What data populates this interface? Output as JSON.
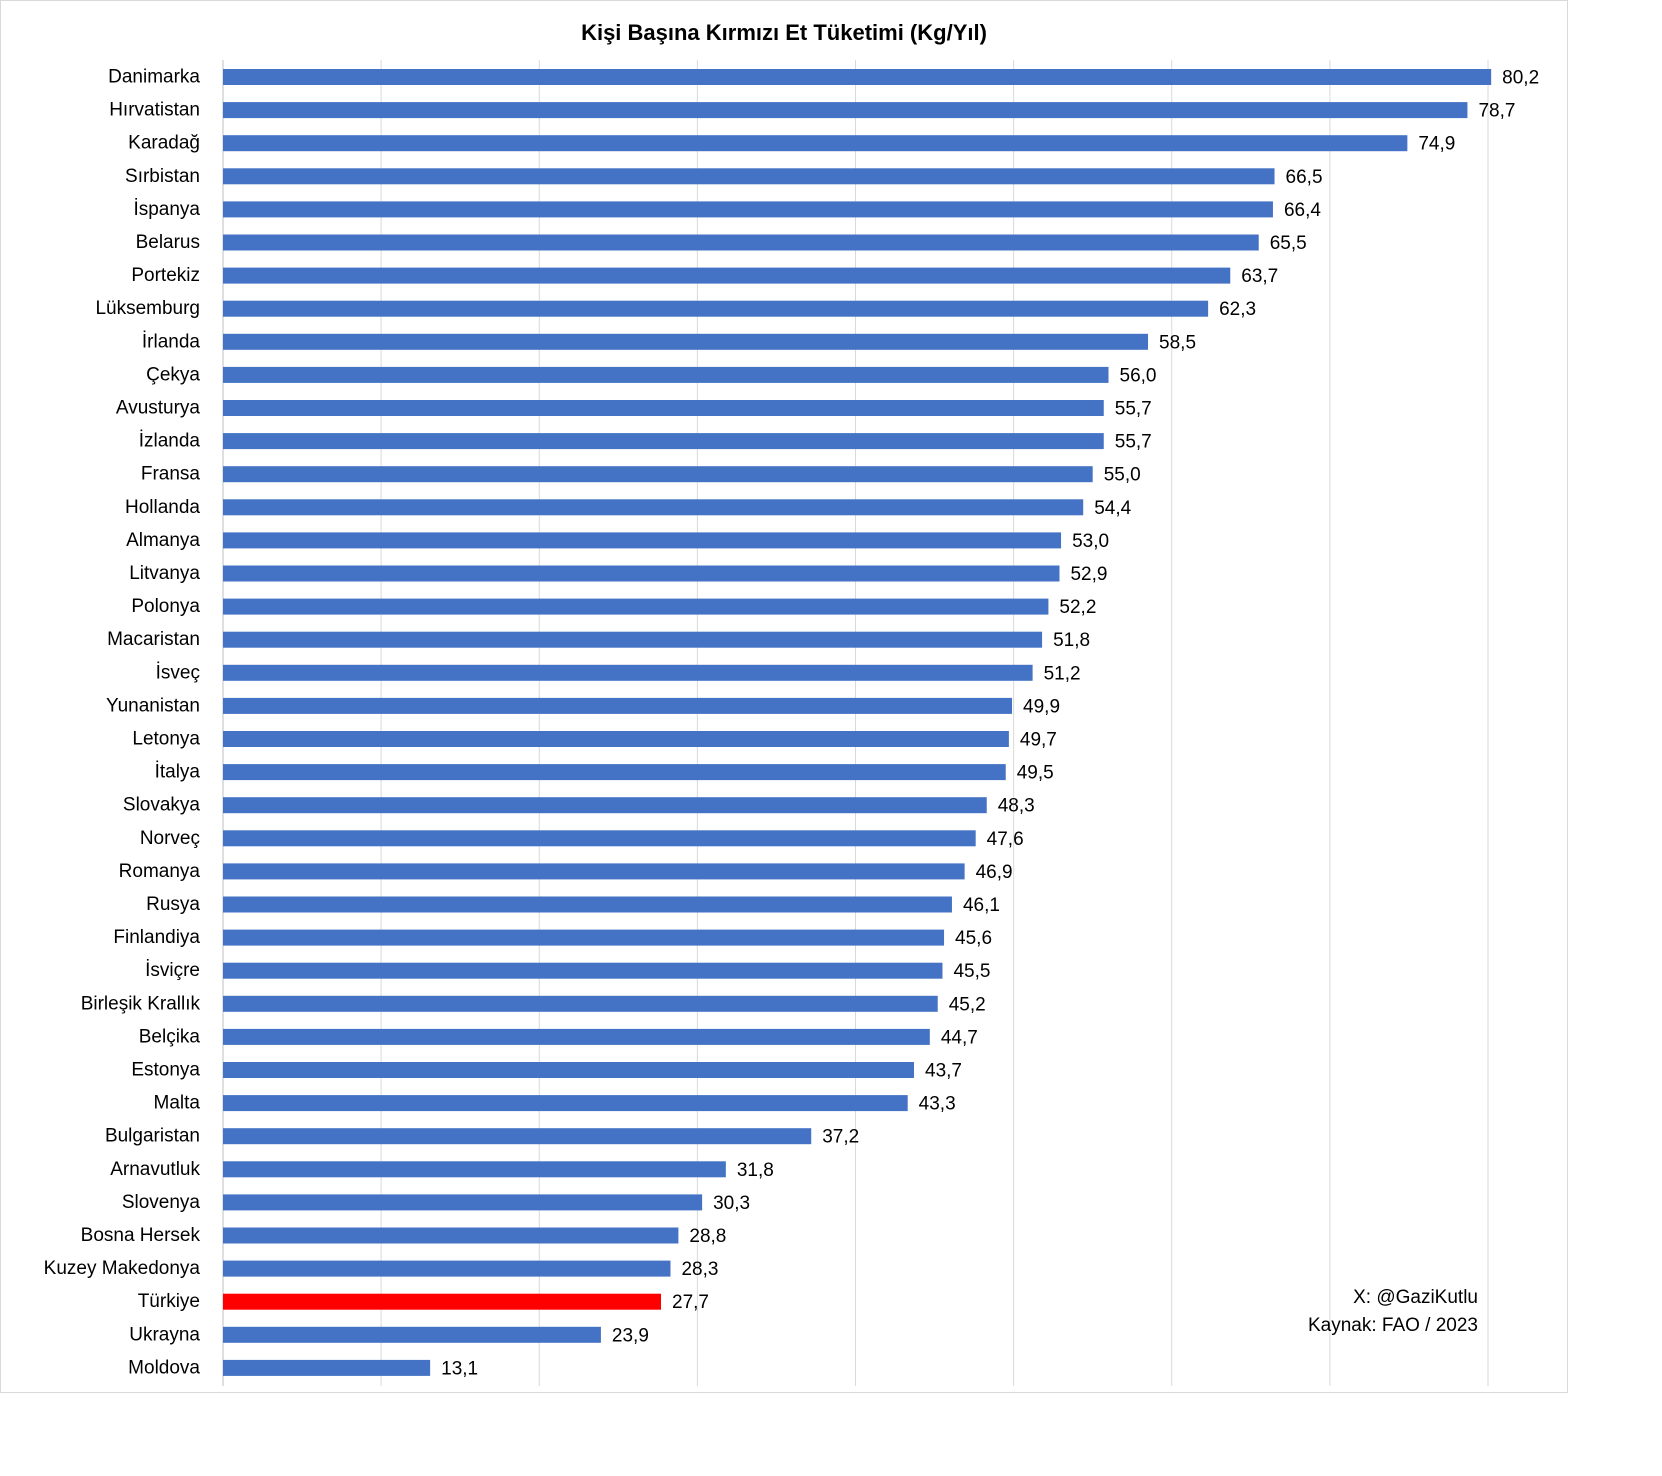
{
  "chart_data": {
    "type": "bar",
    "orientation": "horizontal",
    "title": "Kişi Başına Kırmızı Et Tüketimi (Kg/Yıl)",
    "categories": [
      "Danimarka",
      "Hırvatistan",
      "Karadağ",
      "Sırbistan",
      "İspanya",
      "Belarus",
      "Portekiz",
      "Lüksemburg",
      "İrlanda",
      "Çekya",
      "Avusturya",
      "İzlanda",
      "Fransa",
      "Hollanda",
      "Almanya",
      "Litvanya",
      "Polonya",
      "Macaristan",
      "İsveç",
      "Yunanistan",
      "Letonya",
      "İtalya",
      "Slovakya",
      "Norveç",
      "Romanya",
      "Rusya",
      "Finlandiya",
      "İsviçre",
      "Birleşik Krallık",
      "Belçika",
      "Estonya",
      "Malta",
      "Bulgaristan",
      "Arnavutluk",
      "Slovenya",
      "Bosna Hersek",
      "Kuzey Makedonya",
      "Türkiye",
      "Ukrayna",
      "Moldova"
    ],
    "values": [
      80.2,
      78.7,
      74.9,
      66.5,
      66.4,
      65.5,
      63.7,
      62.3,
      58.5,
      56.0,
      55.7,
      55.7,
      55.0,
      54.4,
      53.0,
      52.9,
      52.2,
      51.8,
      51.2,
      49.9,
      49.7,
      49.5,
      48.3,
      47.6,
      46.9,
      46.1,
      45.6,
      45.5,
      45.2,
      44.7,
      43.7,
      43.3,
      37.2,
      31.8,
      30.3,
      28.8,
      28.3,
      27.7,
      23.9,
      13.1
    ],
    "value_labels": [
      "80,2",
      "78,7",
      "74,9",
      "66,5",
      "66,4",
      "65,5",
      "63,7",
      "62,3",
      "58,5",
      "56,0",
      "55,7",
      "55,7",
      "55,0",
      "54,4",
      "53,0",
      "52,9",
      "52,2",
      "51,8",
      "51,2",
      "49,9",
      "49,7",
      "49,5",
      "48,3",
      "47,6",
      "46,9",
      "46,1",
      "45,6",
      "45,5",
      "45,2",
      "44,7",
      "43,7",
      "43,3",
      "37,2",
      "31,8",
      "30,3",
      "28,8",
      "28,3",
      "27,7",
      "23,9",
      "13,1"
    ],
    "highlight_category": "Türkiye",
    "xlim": [
      0,
      80
    ],
    "gridlines": "vertical",
    "xlabel": "",
    "ylabel": "",
    "bar_color": "#4472c4",
    "highlight_color": "#ff0000"
  },
  "notes": {
    "author": "X: @GaziKutlu",
    "source": "Kaynak: FAO / 2023"
  }
}
